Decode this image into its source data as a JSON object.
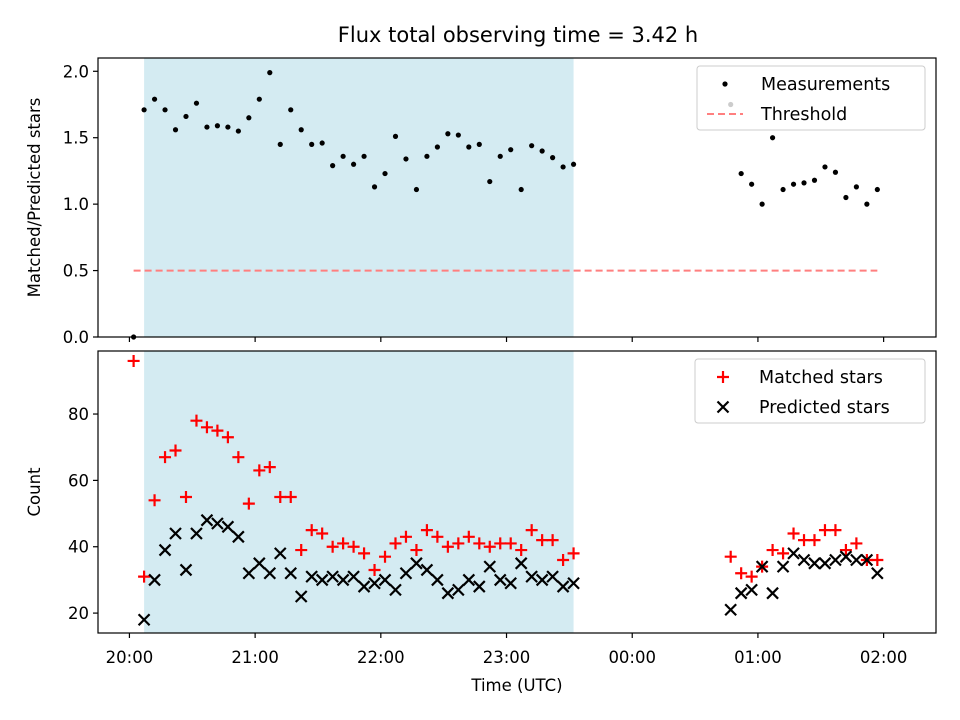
{
  "title": "Flux total observing time = 3.42 h",
  "chart_data": [
    {
      "type": "scatter",
      "ylabel": "Matched/Predicted stars",
      "xlabel": "",
      "xlim": [
        "19:45",
        "26:25"
      ],
      "ylim": [
        0,
        2.1
      ],
      "yticks": [
        "0.0",
        "0.5",
        "1.0",
        "1.5",
        "2.0"
      ],
      "legend": "top-right",
      "grid": false,
      "shaded_interval": {
        "from": "20:07",
        "to": "23:32",
        "color": "#add8e6"
      },
      "series": [
        {
          "name": "Measurements",
          "color": "#000000",
          "marker": "dot",
          "x": [
            "20:02",
            "20:07",
            "20:12",
            "20:17",
            "20:22",
            "20:27",
            "20:32",
            "20:37",
            "20:42",
            "20:47",
            "20:52",
            "20:57",
            "21:02",
            "21:07",
            "21:12",
            "21:17",
            "21:22",
            "21:27",
            "21:32",
            "21:37",
            "21:42",
            "21:47",
            "21:52",
            "21:57",
            "22:02",
            "22:07",
            "22:12",
            "22:17",
            "22:22",
            "22:27",
            "22:32",
            "22:37",
            "22:42",
            "22:47",
            "22:52",
            "22:57",
            "23:02",
            "23:07",
            "23:12",
            "23:17",
            "23:22",
            "23:27",
            "23:32",
            "24:47",
            "24:52",
            "24:57",
            "25:02",
            "25:07",
            "25:12",
            "25:17",
            "25:22",
            "25:27",
            "25:32",
            "25:37",
            "25:42",
            "25:47",
            "25:52",
            "25:57"
          ],
          "y": [
            0.0,
            1.71,
            1.79,
            1.71,
            1.56,
            1.66,
            1.76,
            1.58,
            1.59,
            1.58,
            1.55,
            1.65,
            1.79,
            1.99,
            1.45,
            1.71,
            1.56,
            1.45,
            1.46,
            1.29,
            1.36,
            1.3,
            1.36,
            1.13,
            1.23,
            1.51,
            1.34,
            1.11,
            1.36,
            1.43,
            1.53,
            1.52,
            1.43,
            1.45,
            1.17,
            1.36,
            1.41,
            1.11,
            1.44,
            1.4,
            1.35,
            1.28,
            1.3,
            1.75,
            1.23,
            1.15,
            1.0,
            1.5,
            1.11,
            1.15,
            1.16,
            1.18,
            1.28,
            1.24,
            1.05,
            1.13,
            1.0,
            1.11
          ]
        },
        {
          "name": "Threshold",
          "color": "#ff7f7f",
          "style": "dashed",
          "x": [
            "20:02",
            "25:57"
          ],
          "y": [
            0.5,
            0.5
          ]
        }
      ]
    },
    {
      "type": "scatter",
      "ylabel": "Count",
      "xlabel": "Time (UTC)",
      "xlim": [
        "19:45",
        "26:25"
      ],
      "ylim": [
        14,
        99
      ],
      "yticks": [
        "20",
        "40",
        "60",
        "80"
      ],
      "xticks": [
        "20:00",
        "21:00",
        "22:00",
        "23:00",
        "00:00",
        "01:00",
        "02:00"
      ],
      "legend": "top-right",
      "grid": false,
      "shaded_interval": {
        "from": "20:07",
        "to": "23:32",
        "color": "#add8e6"
      },
      "series": [
        {
          "name": "Matched stars",
          "color": "#ff0000",
          "marker": "plus",
          "x": [
            "20:02",
            "20:07",
            "20:12",
            "20:17",
            "20:22",
            "20:27",
            "20:32",
            "20:37",
            "20:42",
            "20:47",
            "20:52",
            "20:57",
            "21:02",
            "21:07",
            "21:12",
            "21:17",
            "21:22",
            "21:27",
            "21:32",
            "21:37",
            "21:42",
            "21:47",
            "21:52",
            "21:57",
            "22:02",
            "22:07",
            "22:12",
            "22:17",
            "22:22",
            "22:27",
            "22:32",
            "22:37",
            "22:42",
            "22:47",
            "22:52",
            "22:57",
            "23:02",
            "23:07",
            "23:12",
            "23:17",
            "23:22",
            "23:27",
            "23:32",
            "24:47",
            "24:52",
            "24:57",
            "25:02",
            "25:07",
            "25:12",
            "25:17",
            "25:22",
            "25:27",
            "25:32",
            "25:37",
            "25:42",
            "25:47",
            "25:52",
            "25:57"
          ],
          "y": [
            96,
            31,
            54,
            67,
            69,
            55,
            78,
            76,
            75,
            73,
            67,
            53,
            63,
            64,
            55,
            55,
            39,
            45,
            44,
            40,
            41,
            40,
            38,
            33,
            37,
            41,
            43,
            39,
            45,
            43,
            40,
            41,
            43,
            41,
            40,
            41,
            41,
            39,
            45,
            42,
            42,
            36,
            38,
            37,
            32,
            31,
            34,
            39,
            38,
            44,
            42,
            42,
            45,
            45,
            39,
            41,
            36,
            36
          ]
        },
        {
          "name": "Predicted stars",
          "color": "#000000",
          "marker": "x",
          "x": [
            "20:07",
            "20:12",
            "20:17",
            "20:22",
            "20:27",
            "20:32",
            "20:37",
            "20:42",
            "20:47",
            "20:52",
            "20:57",
            "21:02",
            "21:07",
            "21:12",
            "21:17",
            "21:22",
            "21:27",
            "21:32",
            "21:37",
            "21:42",
            "21:47",
            "21:52",
            "21:57",
            "22:02",
            "22:07",
            "22:12",
            "22:17",
            "22:22",
            "22:27",
            "22:32",
            "22:37",
            "22:42",
            "22:47",
            "22:52",
            "22:57",
            "23:02",
            "23:07",
            "23:12",
            "23:17",
            "23:22",
            "23:27",
            "23:32",
            "24:47",
            "24:52",
            "24:57",
            "25:02",
            "25:07",
            "25:12",
            "25:17",
            "25:22",
            "25:27",
            "25:32",
            "25:37",
            "25:42",
            "25:47",
            "25:52",
            "25:57"
          ],
          "y": [
            18,
            30,
            39,
            44,
            33,
            44,
            48,
            47,
            46,
            43,
            32,
            35,
            32,
            38,
            32,
            25,
            31,
            30,
            31,
            30,
            31,
            28,
            29,
            30,
            27,
            32,
            35,
            33,
            30,
            26,
            27,
            30,
            28,
            34,
            30,
            29,
            35,
            31,
            30,
            31,
            28,
            29,
            21,
            26,
            27,
            34,
            26,
            34,
            38,
            36,
            35,
            35,
            36,
            37,
            36,
            36,
            32
          ]
        }
      ]
    }
  ]
}
